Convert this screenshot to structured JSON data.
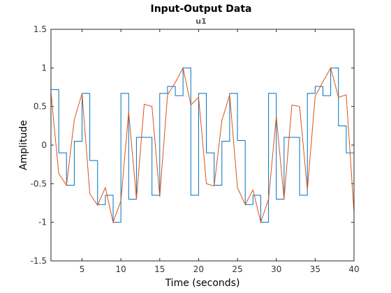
{
  "chart_data": {
    "type": "line",
    "title": "Input-Output Data",
    "subtitle": "u1",
    "xlabel": "Time (seconds)",
    "ylabel": "Amplitude",
    "xlim": [
      1,
      40
    ],
    "ylim": [
      -1.5,
      1.5
    ],
    "xticks": [
      5,
      10,
      15,
      20,
      25,
      30,
      35,
      40
    ],
    "yticks": [
      -1.5,
      -1,
      -0.5,
      0,
      0.5,
      1,
      1.5
    ],
    "grid": false,
    "series": [
      {
        "style": "stairs",
        "color": "#0072BD",
        "x": [
          1,
          2,
          3,
          4,
          5,
          6,
          7,
          8,
          9,
          10,
          11,
          12,
          13,
          14,
          15,
          16,
          17,
          18,
          19,
          20,
          21,
          22,
          23,
          24,
          25,
          26,
          27,
          28,
          29,
          30,
          31,
          32,
          33,
          34,
          35,
          36,
          37,
          38,
          39,
          40
        ],
        "values": [
          0.72,
          -0.1,
          -0.52,
          0.05,
          0.67,
          -0.2,
          -0.77,
          -0.65,
          -1.0,
          0.67,
          -0.7,
          0.1,
          0.1,
          -0.65,
          0.67,
          0.76,
          0.64,
          1.0,
          -0.65,
          0.67,
          -0.1,
          -0.52,
          0.05,
          0.67,
          0.06,
          -0.77,
          -0.65,
          -1.0,
          0.67,
          -0.7,
          0.1,
          0.1,
          -0.65,
          0.67,
          0.76,
          0.64,
          1.0,
          0.25,
          -0.1,
          -0.8
        ]
      },
      {
        "style": "line",
        "color": "#D95319",
        "x": [
          1,
          2,
          3,
          4,
          5,
          6,
          7,
          8,
          9,
          10,
          11,
          12,
          13,
          14,
          15,
          16,
          17,
          18,
          19,
          20,
          21,
          22,
          23,
          24,
          25,
          26,
          27,
          28,
          29,
          30,
          31,
          32,
          33,
          34,
          35,
          36,
          37,
          38,
          39,
          40
        ],
        "values": [
          0.68,
          -0.37,
          -0.52,
          0.33,
          0.67,
          -0.63,
          -0.78,
          -0.55,
          -1.0,
          -0.72,
          0.43,
          -0.7,
          0.53,
          0.5,
          -0.67,
          0.65,
          0.81,
          1.0,
          0.52,
          0.62,
          -0.5,
          -0.53,
          0.32,
          0.65,
          -0.55,
          -0.77,
          -0.58,
          -1.0,
          -0.7,
          0.37,
          -0.7,
          0.52,
          0.5,
          -0.58,
          0.63,
          0.82,
          1.0,
          0.62,
          0.65,
          -0.87
        ]
      }
    ]
  }
}
